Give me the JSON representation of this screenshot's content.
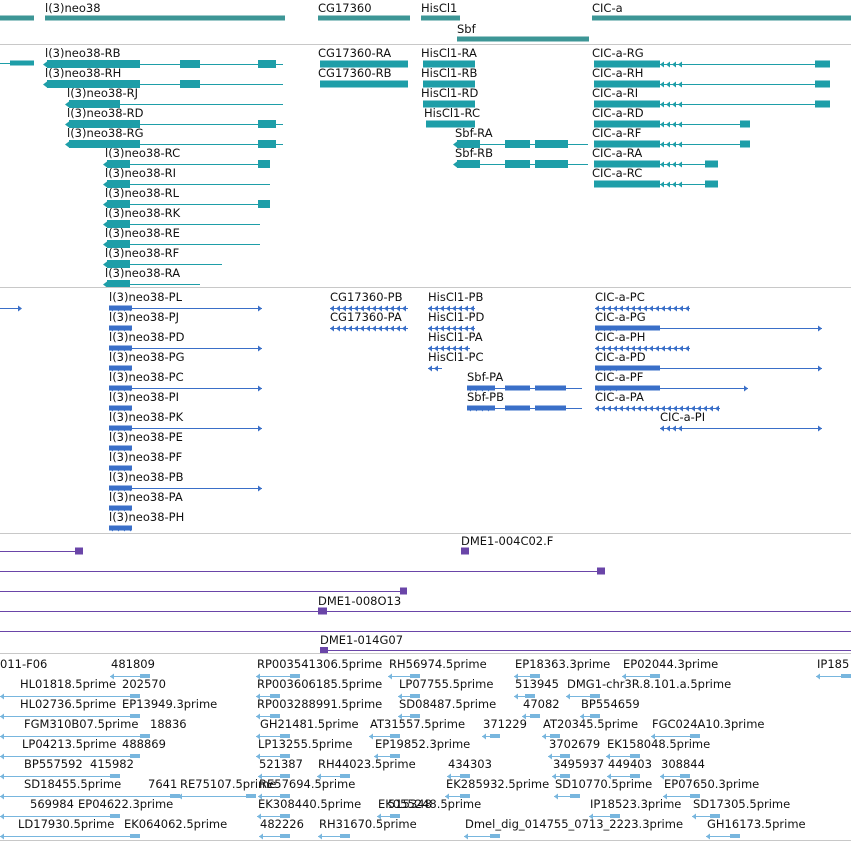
{
  "colors": {
    "gene": "#3d9696",
    "transcript": "#1e9ea8",
    "protein": "#3a6fc8",
    "clone": "#6a45a8",
    "est": "#78b6de",
    "separator": "#c8c8c8"
  },
  "genes": [
    {
      "name": "l(3)neo38",
      "label": "l(3)neo38"
    },
    {
      "name": "CG17360",
      "label": "CG17360"
    },
    {
      "name": "HisCl1",
      "label": "HisCl1"
    },
    {
      "name": "CIC-a",
      "label": "CIC-a"
    },
    {
      "name": "Sbf",
      "label": "Sbf"
    }
  ],
  "transcripts": [
    "l(3)neo38-RB",
    "l(3)neo38-RH",
    "l(3)neo38-RJ",
    "l(3)neo38-RD",
    "l(3)neo38-RG",
    "l(3)neo38-RC",
    "l(3)neo38-RI",
    "l(3)neo38-RL",
    "l(3)neo38-RK",
    "l(3)neo38-RE",
    "l(3)neo38-RF",
    "l(3)neo38-RA",
    "CG17360-RA",
    "CG17360-RB",
    "HisCl1-RA",
    "HisCl1-RB",
    "HisCl1-RD",
    "HisCl1-RC",
    "Sbf-RA",
    "Sbf-RB",
    "CIC-a-RG",
    "CIC-a-RH",
    "CIC-a-RI",
    "CIC-a-RD",
    "CIC-a-RF",
    "CIC-a-RA",
    "CIC-a-RC"
  ],
  "proteins": [
    "l(3)neo38-PL",
    "l(3)neo38-PJ",
    "l(3)neo38-PD",
    "l(3)neo38-PG",
    "l(3)neo38-PC",
    "l(3)neo38-PI",
    "l(3)neo38-PK",
    "l(3)neo38-PE",
    "l(3)neo38-PF",
    "l(3)neo38-PB",
    "l(3)neo38-PA",
    "l(3)neo38-PH",
    "CG17360-PB",
    "CG17360-PA",
    "HisCl1-PB",
    "HisCl1-PD",
    "HisCl1-PA",
    "HisCl1-PC",
    "Sbf-PA",
    "Sbf-PB",
    "CIC-a-PC",
    "CIC-a-PG",
    "CIC-a-PH",
    "CIC-a-PD",
    "CIC-a-PF",
    "CIC-a-PA",
    "CIC-a-PI"
  ],
  "clones": [
    "DME1-004C02.F",
    "DME1-008O13",
    "DME1-014G07"
  ],
  "ests": [
    "011-F06",
    "481809",
    "RP003541306.5prime",
    "RH56974.5prime",
    "EP18363.3prime",
    "EP02044.3prime",
    "IP185",
    "HL01818.5prime",
    "202570",
    "RP003606185.5prime",
    "LP07755.5prime",
    "513945",
    "DMG1-chr3R.8.101.a.5prime",
    "HL02736.5prime",
    "EP13949.3prime",
    "RP003288991.5prime",
    "SD08487.5prime",
    "47082",
    "BP554659",
    "FGM310B07.5prime",
    "18836",
    "GH21481.5prime",
    "AT31557.5prime",
    "371229",
    "AT20345.5prime",
    "FGC024A10.3prime",
    "LP04213.5prime",
    "488869",
    "LP13255.5prime",
    "EP19852.3prime",
    "3702679",
    "EK158048.5prime",
    "BP557592",
    "415982",
    "521387",
    "RH44023.5prime",
    "434303",
    "3495937",
    "449403",
    "308844",
    "SD18455.5prime",
    "7641",
    "RE75107.5prime",
    "RE57694.5prime",
    "EK285932.5prime",
    "SD10770.5prime",
    "EP07650.3prime",
    "569984",
    "EP04622.3prime",
    "EK308440.5prime",
    "515348",
    "EK055248.5prime",
    "IP18523.3prime",
    "SD17305.5prime",
    "LD17930.5prime",
    "EK064062.5prime",
    "482226",
    "RH31670.5prime",
    "Dmel_dig_014755_0713_2223.3prime",
    "GH16173.5prime"
  ]
}
